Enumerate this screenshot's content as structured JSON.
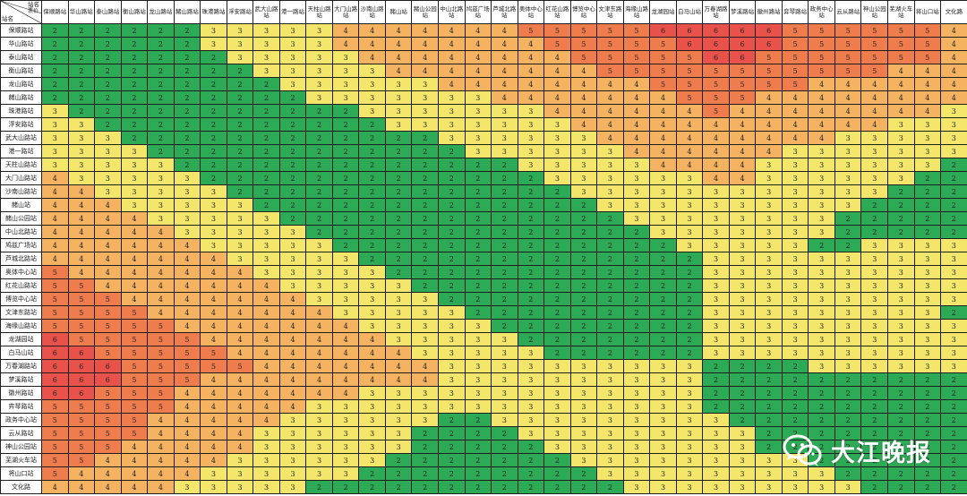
{
  "corner": {
    "top": "站名",
    "middle": "票价",
    "left": "站名"
  },
  "watermark": {
    "text": "大江晚报"
  },
  "colors": {
    "2": "#2daa55",
    "3": "#f4e66a",
    "4": "#f5b361",
    "5": "#ef7c4c",
    "6": "#e8524a"
  },
  "stations": [
    "保顺路站",
    "华山路站",
    "泰山路站",
    "衡山路站",
    "龙山路站",
    "赭山路站",
    "珠港路站",
    "浮安路站",
    "武大山路站",
    "港一路站",
    "天柱山路站",
    "大门山路站",
    "沙南山路站",
    "赭山站",
    "赭山公园站",
    "中山北路站",
    "鸠兹广场站",
    "芦城北路站",
    "奥体中心站",
    "红花山路站",
    "博览中心站",
    "文津东路站",
    "海缘山路站",
    "龙湖园站",
    "白马山站",
    "万春湖路站",
    "梦溪路站",
    "徽州路站",
    "弈琴路站",
    "政务中心站",
    "云从路站",
    "神山公园站",
    "芜湖火车站",
    "将山口站",
    "文化路"
  ],
  "chart_data": {
    "type": "table",
    "title": "",
    "row_labels": [
      "保顺路站",
      "华山路站",
      "泰山路站",
      "衡山路站",
      "龙山路站",
      "赭山路站",
      "珠港路站",
      "浮安路站",
      "武大山路站",
      "港一路站",
      "天柱山路站",
      "大门山路站",
      "沙南山路站",
      "赭山站",
      "赭山公园站",
      "中山北路站",
      "鸠兹广场站",
      "芦城北路站",
      "奥体中心站",
      "红花山路站",
      "博览中心站",
      "文津东路站",
      "海缘山路站",
      "龙湖园站",
      "白马山站",
      "万春湖路站",
      "梦溪路站",
      "徽州路站",
      "弈琴路站",
      "政务中心站",
      "云从路站",
      "神山公园站",
      "芜湖火车站",
      "将山口站",
      "文化路"
    ],
    "column_labels": [
      "保顺路站",
      "华山路站",
      "泰山路站",
      "衡山路站",
      "龙山路站",
      "赭山路站",
      "珠港路站",
      "浮安路站",
      "武大山路站",
      "港一路站",
      "天柱山路站",
      "大门山路站",
      "沙南山路站",
      "赭山站",
      "赭山公园站",
      "中山北路站",
      "鸠兹广场站",
      "芦城北路站",
      "奥体中心站",
      "红花山路站",
      "博览中心站",
      "文津东路站",
      "海缘山路站",
      "龙湖园站",
      "白马山站",
      "万春湖路站",
      "梦溪路站",
      "徽州路站",
      "弈琴路站",
      "政务中心站",
      "云从路站",
      "神山公园站",
      "芜湖火车站",
      "将山口站",
      "文化路"
    ],
    "values": [
      [
        2,
        2,
        2,
        2,
        2,
        2,
        3,
        3,
        3,
        3,
        3,
        4,
        4,
        4,
        4,
        4,
        4,
        4,
        5,
        5,
        5,
        5,
        5,
        6,
        6,
        6,
        6,
        6,
        5,
        5,
        5,
        5,
        5,
        5,
        4
      ],
      [
        2,
        2,
        2,
        2,
        2,
        2,
        3,
        3,
        3,
        3,
        3,
        4,
        4,
        4,
        4,
        4,
        4,
        4,
        4,
        5,
        5,
        5,
        5,
        5,
        6,
        6,
        6,
        6,
        5,
        5,
        5,
        5,
        5,
        5,
        4
      ],
      [
        2,
        2,
        2,
        2,
        2,
        2,
        2,
        3,
        3,
        3,
        3,
        3,
        4,
        4,
        4,
        4,
        4,
        4,
        4,
        4,
        5,
        5,
        5,
        5,
        5,
        6,
        6,
        5,
        5,
        5,
        5,
        5,
        5,
        5,
        4
      ],
      [
        2,
        2,
        2,
        2,
        2,
        2,
        2,
        2,
        3,
        3,
        3,
        3,
        3,
        4,
        4,
        4,
        4,
        4,
        4,
        4,
        4,
        5,
        5,
        5,
        5,
        5,
        5,
        5,
        5,
        5,
        5,
        5,
        4,
        4,
        4
      ],
      [
        2,
        2,
        2,
        2,
        2,
        2,
        2,
        2,
        2,
        3,
        3,
        3,
        3,
        3,
        3,
        4,
        4,
        4,
        4,
        4,
        4,
        4,
        4,
        5,
        5,
        5,
        5,
        5,
        5,
        4,
        4,
        4,
        4,
        4,
        4
      ],
      [
        2,
        2,
        2,
        2,
        2,
        2,
        2,
        2,
        2,
        2,
        3,
        3,
        3,
        3,
        3,
        3,
        3,
        4,
        4,
        4,
        4,
        4,
        4,
        4,
        5,
        5,
        5,
        4,
        4,
        4,
        4,
        4,
        4,
        4,
        4
      ],
      [
        3,
        2,
        2,
        2,
        2,
        2,
        2,
        2,
        2,
        2,
        2,
        2,
        3,
        3,
        3,
        3,
        3,
        3,
        3,
        4,
        4,
        4,
        4,
        4,
        4,
        5,
        4,
        4,
        4,
        4,
        4,
        4,
        4,
        4,
        3
      ],
      [
        3,
        3,
        2,
        2,
        2,
        2,
        2,
        2,
        2,
        2,
        2,
        2,
        2,
        3,
        3,
        3,
        3,
        3,
        3,
        3,
        4,
        4,
        4,
        4,
        4,
        4,
        4,
        4,
        4,
        4,
        4,
        4,
        3,
        3,
        3
      ],
      [
        3,
        3,
        3,
        2,
        2,
        2,
        2,
        2,
        2,
        2,
        2,
        2,
        2,
        2,
        2,
        3,
        3,
        3,
        3,
        3,
        3,
        4,
        4,
        4,
        4,
        4,
        4,
        4,
        4,
        4,
        3,
        3,
        3,
        3,
        3
      ],
      [
        3,
        3,
        3,
        3,
        2,
        2,
        2,
        2,
        2,
        2,
        2,
        2,
        2,
        2,
        2,
        2,
        3,
        3,
        3,
        3,
        3,
        3,
        4,
        4,
        4,
        4,
        4,
        4,
        3,
        3,
        3,
        3,
        3,
        3,
        3
      ],
      [
        3,
        3,
        3,
        3,
        3,
        2,
        2,
        2,
        2,
        2,
        2,
        2,
        2,
        2,
        2,
        2,
        2,
        2,
        3,
        3,
        3,
        3,
        3,
        4,
        4,
        4,
        4,
        3,
        3,
        3,
        3,
        3,
        3,
        3,
        2
      ],
      [
        4,
        3,
        3,
        3,
        3,
        3,
        2,
        2,
        2,
        2,
        2,
        2,
        2,
        2,
        2,
        2,
        2,
        2,
        2,
        3,
        3,
        3,
        3,
        3,
        3,
        4,
        4,
        3,
        3,
        3,
        3,
        3,
        3,
        2,
        2
      ],
      [
        4,
        4,
        3,
        3,
        3,
        3,
        3,
        2,
        2,
        2,
        2,
        2,
        2,
        2,
        2,
        2,
        2,
        2,
        2,
        2,
        3,
        3,
        3,
        3,
        3,
        3,
        3,
        3,
        3,
        3,
        3,
        3,
        2,
        2,
        2
      ],
      [
        4,
        4,
        4,
        3,
        3,
        3,
        3,
        3,
        2,
        2,
        2,
        2,
        2,
        2,
        2,
        2,
        2,
        2,
        2,
        2,
        2,
        3,
        3,
        3,
        3,
        3,
        3,
        3,
        3,
        3,
        3,
        2,
        2,
        2,
        2
      ],
      [
        4,
        4,
        4,
        4,
        3,
        3,
        3,
        3,
        3,
        2,
        2,
        2,
        2,
        2,
        2,
        2,
        2,
        2,
        2,
        2,
        2,
        2,
        3,
        3,
        3,
        3,
        3,
        3,
        3,
        3,
        2,
        2,
        2,
        2,
        2
      ],
      [
        4,
        4,
        4,
        4,
        4,
        3,
        3,
        3,
        3,
        3,
        2,
        2,
        2,
        2,
        2,
        2,
        2,
        2,
        2,
        2,
        2,
        2,
        2,
        3,
        3,
        3,
        3,
        3,
        3,
        3,
        2,
        2,
        2,
        2,
        2
      ],
      [
        4,
        4,
        4,
        4,
        4,
        4,
        3,
        3,
        3,
        3,
        3,
        2,
        2,
        2,
        2,
        2,
        2,
        2,
        2,
        2,
        2,
        2,
        2,
        2,
        3,
        3,
        3,
        3,
        3,
        2,
        2,
        3,
        3,
        3,
        3
      ],
      [
        4,
        4,
        4,
        4,
        4,
        4,
        4,
        3,
        3,
        3,
        3,
        3,
        2,
        2,
        2,
        2,
        2,
        2,
        2,
        2,
        2,
        2,
        2,
        2,
        2,
        3,
        3,
        3,
        3,
        3,
        3,
        3,
        3,
        3,
        3
      ],
      [
        5,
        4,
        4,
        4,
        4,
        4,
        4,
        4,
        3,
        3,
        3,
        3,
        3,
        2,
        2,
        2,
        2,
        2,
        2,
        2,
        2,
        2,
        2,
        2,
        2,
        3,
        3,
        3,
        3,
        3,
        3,
        3,
        3,
        3,
        3
      ],
      [
        5,
        5,
        4,
        4,
        4,
        4,
        4,
        4,
        4,
        3,
        3,
        3,
        3,
        3,
        2,
        2,
        2,
        2,
        2,
        2,
        2,
        2,
        2,
        2,
        2,
        3,
        3,
        3,
        3,
        3,
        3,
        3,
        3,
        3,
        3
      ],
      [
        5,
        5,
        5,
        4,
        4,
        4,
        4,
        4,
        4,
        4,
        3,
        3,
        3,
        3,
        3,
        2,
        2,
        2,
        2,
        2,
        2,
        2,
        2,
        2,
        2,
        3,
        3,
        3,
        3,
        3,
        3,
        3,
        3,
        3,
        3
      ],
      [
        5,
        5,
        5,
        5,
        4,
        4,
        4,
        4,
        4,
        4,
        4,
        3,
        3,
        3,
        3,
        3,
        2,
        2,
        2,
        2,
        2,
        2,
        2,
        2,
        2,
        3,
        3,
        3,
        3,
        3,
        3,
        3,
        3,
        3,
        2
      ],
      [
        5,
        5,
        5,
        5,
        5,
        4,
        4,
        4,
        4,
        4,
        4,
        4,
        3,
        3,
        3,
        3,
        3,
        2,
        2,
        2,
        2,
        2,
        2,
        2,
        2,
        3,
        3,
        3,
        3,
        3,
        3,
        3,
        3,
        3,
        3
      ],
      [
        6,
        5,
        5,
        5,
        5,
        5,
        4,
        4,
        4,
        4,
        4,
        4,
        4,
        3,
        3,
        3,
        3,
        3,
        2,
        2,
        2,
        2,
        2,
        2,
        2,
        3,
        3,
        3,
        3,
        3,
        3,
        3,
        3,
        3,
        3
      ],
      [
        6,
        6,
        5,
        5,
        5,
        5,
        5,
        4,
        4,
        4,
        4,
        4,
        4,
        4,
        3,
        3,
        3,
        3,
        3,
        2,
        2,
        2,
        2,
        2,
        2,
        3,
        3,
        3,
        3,
        3,
        3,
        3,
        3,
        3,
        3
      ],
      [
        6,
        6,
        6,
        5,
        5,
        5,
        5,
        5,
        4,
        4,
        4,
        4,
        4,
        4,
        4,
        3,
        3,
        3,
        3,
        3,
        3,
        3,
        3,
        3,
        3,
        2,
        2,
        2,
        2,
        3,
        3,
        3,
        3,
        3,
        3
      ],
      [
        6,
        6,
        6,
        5,
        5,
        5,
        4,
        4,
        4,
        4,
        4,
        4,
        4,
        4,
        4,
        3,
        3,
        3,
        3,
        3,
        3,
        3,
        3,
        3,
        3,
        2,
        2,
        2,
        2,
        2,
        2,
        2,
        2,
        2,
        2
      ],
      [
        6,
        6,
        5,
        5,
        5,
        4,
        4,
        4,
        4,
        4,
        4,
        4,
        3,
        3,
        3,
        3,
        3,
        3,
        3,
        3,
        3,
        3,
        3,
        3,
        3,
        2,
        2,
        2,
        2,
        2,
        2,
        2,
        2,
        2,
        2
      ],
      [
        5,
        5,
        5,
        5,
        5,
        4,
        4,
        4,
        4,
        4,
        3,
        3,
        3,
        3,
        3,
        3,
        3,
        3,
        3,
        3,
        3,
        3,
        3,
        3,
        3,
        2,
        2,
        2,
        2,
        2,
        2,
        2,
        2,
        2,
        2
      ],
      [
        5,
        5,
        5,
        5,
        4,
        4,
        4,
        4,
        4,
        3,
        3,
        3,
        3,
        3,
        3,
        2,
        2,
        3,
        3,
        3,
        3,
        3,
        3,
        3,
        3,
        3,
        2,
        2,
        2,
        2,
        2,
        2,
        2,
        2,
        2
      ],
      [
        5,
        5,
        5,
        5,
        4,
        4,
        4,
        4,
        3,
        3,
        3,
        3,
        3,
        3,
        2,
        2,
        2,
        2,
        3,
        3,
        3,
        3,
        3,
        3,
        3,
        3,
        3,
        2,
        2,
        2,
        2,
        2,
        2,
        2,
        2
      ],
      [
        5,
        5,
        5,
        4,
        4,
        4,
        4,
        4,
        3,
        3,
        3,
        3,
        3,
        3,
        2,
        2,
        2,
        2,
        2,
        3,
        3,
        3,
        3,
        3,
        3,
        3,
        3,
        2,
        2,
        2,
        2,
        2,
        2,
        2,
        2
      ],
      [
        5,
        5,
        4,
        4,
        4,
        4,
        4,
        3,
        3,
        3,
        3,
        3,
        3,
        2,
        2,
        2,
        2,
        2,
        2,
        2,
        3,
        3,
        3,
        3,
        3,
        3,
        3,
        3,
        3,
        2,
        2,
        2,
        2,
        2,
        2
      ],
      [
        5,
        4,
        4,
        4,
        4,
        4,
        3,
        3,
        3,
        3,
        3,
        3,
        2,
        2,
        2,
        2,
        2,
        2,
        2,
        2,
        2,
        3,
        3,
        3,
        3,
        3,
        3,
        3,
        3,
        3,
        2,
        2,
        2,
        2,
        2
      ],
      [
        4,
        4,
        4,
        4,
        4,
        3,
        3,
        3,
        3,
        3,
        2,
        2,
        2,
        2,
        2,
        2,
        2,
        2,
        2,
        2,
        2,
        2,
        3,
        3,
        3,
        3,
        3,
        3,
        3,
        3,
        3,
        2,
        2,
        2,
        2
      ]
    ]
  }
}
